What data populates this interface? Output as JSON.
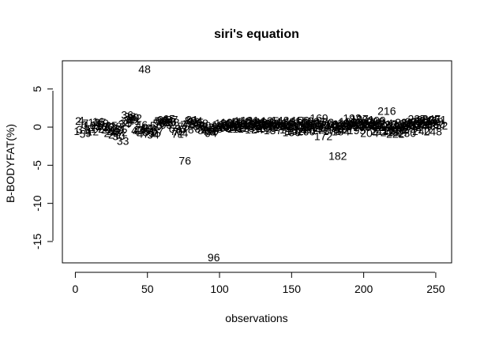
{
  "chart_data": {
    "type": "scatter",
    "title": "siri's equation",
    "xlabel": "observations",
    "ylabel": "B-BODYFAT(%)",
    "xlim": [
      -9,
      261
    ],
    "ylim": [
      -17.8,
      8.7
    ],
    "xticks": [
      0,
      50,
      100,
      150,
      200,
      250
    ],
    "yticks": [
      5,
      0,
      -5,
      -10,
      -15
    ],
    "xtick_labels": [
      "0",
      "50",
      "100",
      "150",
      "200",
      "250"
    ],
    "ytick_labels": [
      "5",
      "0",
      "-5",
      "-10",
      "-15"
    ],
    "grid": false,
    "legend": "none",
    "marker": "observation index number",
    "points": [
      [
        1,
        -0.5
      ],
      [
        2,
        0.8
      ],
      [
        3,
        -0.3
      ],
      [
        4,
        0.9
      ],
      [
        5,
        -0.9
      ],
      [
        6,
        0.3
      ],
      [
        7,
        0.5
      ],
      [
        8,
        -0.4
      ],
      [
        9,
        -0.8
      ],
      [
        10,
        0.2
      ],
      [
        11,
        -0.2
      ],
      [
        12,
        -0.6
      ],
      [
        13,
        0.6
      ],
      [
        14,
        0.0
      ],
      [
        15,
        0.3
      ],
      [
        16,
        0.7
      ],
      [
        17,
        0.6
      ],
      [
        18,
        0.1
      ],
      [
        19,
        0.5
      ],
      [
        20,
        -0.2
      ],
      [
        21,
        0.2
      ],
      [
        22,
        -0.3
      ],
      [
        23,
        0.0
      ],
      [
        24,
        -0.8
      ],
      [
        25,
        0.2
      ],
      [
        26,
        -0.5
      ],
      [
        27,
        -1.0
      ],
      [
        28,
        0.1
      ],
      [
        29,
        -0.4
      ],
      [
        30,
        -1.2
      ],
      [
        31,
        -0.2
      ],
      [
        32,
        -0.7
      ],
      [
        33,
        -1.8
      ],
      [
        34,
        0.4
      ],
      [
        35,
        0.5
      ],
      [
        36,
        1.6
      ],
      [
        37,
        0.9
      ],
      [
        38,
        1.4
      ],
      [
        39,
        1.0
      ],
      [
        40,
        1.3
      ],
      [
        41,
        0.8
      ],
      [
        42,
        1.2
      ],
      [
        43,
        -0.4
      ],
      [
        44,
        -0.6
      ],
      [
        45,
        -0.3
      ],
      [
        46,
        0.3
      ],
      [
        47,
        -0.9
      ],
      [
        48,
        7.6
      ],
      [
        49,
        -0.1
      ],
      [
        50,
        -0.2
      ],
      [
        51,
        -0.7
      ],
      [
        52,
        -0.5
      ],
      [
        53,
        -0.3
      ],
      [
        54,
        -1.0
      ],
      [
        55,
        -0.8
      ],
      [
        56,
        0.2
      ],
      [
        57,
        -0.5
      ],
      [
        58,
        0.5
      ],
      [
        59,
        0.8
      ],
      [
        60,
        0.9
      ],
      [
        61,
        1.0
      ],
      [
        62,
        0.6
      ],
      [
        63,
        0.3
      ],
      [
        64,
        0.9
      ],
      [
        65,
        1.1
      ],
      [
        66,
        0.7
      ],
      [
        67,
        1.0
      ],
      [
        68,
        0.6
      ],
      [
        69,
        -0.2
      ],
      [
        70,
        -0.5
      ],
      [
        71,
        -0.9
      ],
      [
        72,
        -0.6
      ],
      [
        73,
        -0.2
      ],
      [
        74,
        -0.8
      ],
      [
        75,
        0.1
      ],
      [
        76,
        -4.4
      ],
      [
        77,
        0.3
      ],
      [
        78,
        -0.3
      ],
      [
        79,
        0.4
      ],
      [
        80,
        0.9
      ],
      [
        81,
        1.0
      ],
      [
        82,
        0.7
      ],
      [
        83,
        0.3
      ],
      [
        84,
        0.8
      ],
      [
        85,
        0.6
      ],
      [
        86,
        0.1
      ],
      [
        87,
        -0.2
      ],
      [
        88,
        0.5
      ],
      [
        89,
        -0.4
      ],
      [
        90,
        0.2
      ],
      [
        91,
        -0.3
      ],
      [
        92,
        0.0
      ],
      [
        93,
        -0.6
      ],
      [
        94,
        -0.8
      ],
      [
        95,
        -0.5
      ],
      [
        96,
        -17.1
      ],
      [
        97,
        -0.3
      ],
      [
        98,
        -0.2
      ],
      [
        99,
        0.1
      ],
      [
        100,
        0.0
      ],
      [
        101,
        0.3
      ],
      [
        102,
        -0.1
      ],
      [
        103,
        0.5
      ],
      [
        104,
        0.2
      ],
      [
        105,
        0.0
      ],
      [
        106,
        0.4
      ],
      [
        107,
        0.6
      ],
      [
        108,
        0.3
      ],
      [
        109,
        0.1
      ],
      [
        110,
        0.5
      ],
      [
        111,
        -0.2
      ],
      [
        112,
        0.0
      ],
      [
        113,
        0.4
      ],
      [
        114,
        0.7
      ],
      [
        115,
        0.2
      ],
      [
        116,
        0.8
      ],
      [
        117,
        0.5
      ],
      [
        118,
        -0.1
      ],
      [
        119,
        0.3
      ],
      [
        120,
        0.6
      ],
      [
        121,
        0.9
      ],
      [
        122,
        0.2
      ],
      [
        123,
        0.4
      ],
      [
        124,
        -0.3
      ],
      [
        125,
        0.5
      ],
      [
        126,
        0.7
      ],
      [
        127,
        0.1
      ],
      [
        128,
        0.3
      ],
      [
        129,
        0.5
      ],
      [
        130,
        -0.2
      ],
      [
        131,
        0.6
      ],
      [
        132,
        0.2
      ],
      [
        133,
        -0.1
      ],
      [
        134,
        0.4
      ],
      [
        135,
        0.8
      ],
      [
        136,
        0.3
      ],
      [
        137,
        -0.4
      ],
      [
        138,
        0.5
      ],
      [
        139,
        0.1
      ],
      [
        140,
        0.2
      ],
      [
        141,
        0.6
      ],
      [
        142,
        0.9
      ],
      [
        143,
        0.3
      ],
      [
        144,
        0.0
      ],
      [
        145,
        0.4
      ],
      [
        146,
        0.7
      ],
      [
        147,
        0.2
      ],
      [
        148,
        -0.3
      ],
      [
        149,
        0.5
      ],
      [
        150,
        -0.7
      ],
      [
        151,
        0.3
      ],
      [
        152,
        -0.5
      ],
      [
        153,
        0.1
      ],
      [
        154,
        -0.4
      ],
      [
        155,
        0.6
      ],
      [
        156,
        0.9
      ],
      [
        157,
        0.2
      ],
      [
        158,
        -0.2
      ],
      [
        159,
        0.8
      ],
      [
        160,
        -0.6
      ],
      [
        161,
        0.3
      ],
      [
        162,
        0.0
      ],
      [
        163,
        0.5
      ],
      [
        164,
        -0.3
      ],
      [
        165,
        0.4
      ],
      [
        166,
        0.1
      ],
      [
        167,
        0.7
      ],
      [
        168,
        0.2
      ],
      [
        169,
        1.2
      ],
      [
        170,
        -0.4
      ],
      [
        171,
        0.3
      ],
      [
        172,
        -1.2
      ],
      [
        173,
        0.6
      ],
      [
        174,
        0.2
      ],
      [
        175,
        -0.1
      ],
      [
        176,
        0.4
      ],
      [
        177,
        0.0
      ],
      [
        178,
        -0.5
      ],
      [
        179,
        0.2
      ],
      [
        180,
        0.3
      ],
      [
        181,
        -0.3
      ],
      [
        182,
        -3.8
      ],
      [
        183,
        0.1
      ],
      [
        184,
        -0.6
      ],
      [
        185,
        0.4
      ],
      [
        186,
        0.2
      ],
      [
        187,
        -0.2
      ],
      [
        188,
        0.5
      ],
      [
        189,
        0.7
      ],
      [
        190,
        0.1
      ],
      [
        191,
        0.3
      ],
      [
        192,
        1.2
      ],
      [
        193,
        0.6
      ],
      [
        194,
        0.2
      ],
      [
        195,
        -0.4
      ],
      [
        196,
        0.5
      ],
      [
        197,
        1.1
      ],
      [
        198,
        0.3
      ],
      [
        199,
        0.0
      ],
      [
        200,
        0.6
      ],
      [
        201,
        1.0
      ],
      [
        202,
        0.4
      ],
      [
        203,
        0.2
      ],
      [
        204,
        -0.8
      ],
      [
        205,
        0.3
      ],
      [
        206,
        0.5
      ],
      [
        207,
        0.1
      ],
      [
        208,
        0.7
      ],
      [
        209,
        0.9
      ],
      [
        210,
        0.2
      ],
      [
        211,
        -0.5
      ],
      [
        212,
        0.3
      ],
      [
        213,
        0.0
      ],
      [
        214,
        0.5
      ],
      [
        215,
        -0.3
      ],
      [
        216,
        2.1
      ],
      [
        217,
        0.4
      ],
      [
        218,
        -0.7
      ],
      [
        219,
        0.1
      ],
      [
        220,
        -0.4
      ],
      [
        221,
        0.3
      ],
      [
        222,
        -0.9
      ],
      [
        223,
        0.2
      ],
      [
        224,
        -0.6
      ],
      [
        225,
        0.0
      ],
      [
        226,
        0.4
      ],
      [
        227,
        -0.3
      ],
      [
        228,
        0.6
      ],
      [
        229,
        0.2
      ],
      [
        230,
        -0.8
      ],
      [
        231,
        0.1
      ],
      [
        232,
        0.5
      ],
      [
        233,
        0.3
      ],
      [
        234,
        -0.2
      ],
      [
        235,
        0.7
      ],
      [
        236,
        0.4
      ],
      [
        237,
        1.1
      ],
      [
        238,
        0.3
      ],
      [
        239,
        0.6
      ],
      [
        240,
        -0.5
      ],
      [
        241,
        0.8
      ],
      [
        242,
        0.2
      ],
      [
        243,
        1.0
      ],
      [
        244,
        0.5
      ],
      [
        245,
        0.9
      ],
      [
        246,
        0.3
      ],
      [
        247,
        1.1
      ],
      [
        248,
        -0.6
      ],
      [
        249,
        0.7
      ],
      [
        250,
        0.4
      ],
      [
        251,
        1.0
      ],
      [
        252,
        0.2
      ]
    ]
  }
}
